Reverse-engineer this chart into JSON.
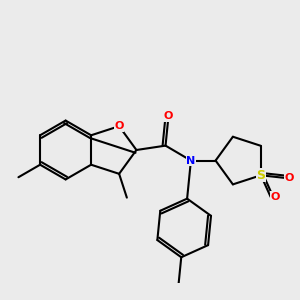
{
  "bg_color": "#ebebeb",
  "line_color": "#000000",
  "O_color": "#ff0000",
  "N_color": "#0000ff",
  "S_color": "#cccc00",
  "bond_lw": 1.5,
  "figsize": [
    3.0,
    3.0
  ],
  "dpi": 100,
  "xlim": [
    -1.5,
    8.5
  ],
  "ylim": [
    -4.5,
    4.5
  ]
}
